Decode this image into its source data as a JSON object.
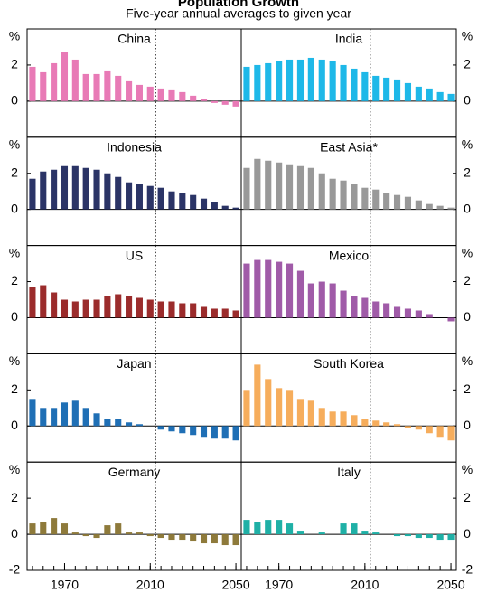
{
  "title": "Population Growth",
  "subtitle": "Five-year annual averages to given year",
  "chart_data": [
    {
      "type": "bar",
      "title": "China",
      "y_label": "%",
      "color": "#e87ab6",
      "x": [
        1955,
        1960,
        1965,
        1970,
        1975,
        1980,
        1985,
        1990,
        1995,
        2000,
        2005,
        2010,
        2015,
        2020,
        2025,
        2030,
        2035,
        2040,
        2045,
        2050
      ],
      "values": [
        1.9,
        1.6,
        2.1,
        2.7,
        2.3,
        1.5,
        1.5,
        1.7,
        1.4,
        1.1,
        0.9,
        0.8,
        0.7,
        0.6,
        0.5,
        0.3,
        0.1,
        -0.1,
        -0.2,
        -0.3
      ],
      "xlim": [
        1952.5,
        2052.5
      ],
      "ylim": [
        -2,
        4
      ],
      "yticks": [
        0,
        2
      ],
      "divider_x": 2012.5
    },
    {
      "type": "bar",
      "title": "India",
      "y_label": "%",
      "color": "#1eb8e8",
      "x": [
        1955,
        1960,
        1965,
        1970,
        1975,
        1980,
        1985,
        1990,
        1995,
        2000,
        2005,
        2010,
        2015,
        2020,
        2025,
        2030,
        2035,
        2040,
        2045,
        2050
      ],
      "values": [
        1.9,
        2.0,
        2.1,
        2.2,
        2.3,
        2.3,
        2.4,
        2.3,
        2.2,
        2.0,
        1.8,
        1.6,
        1.4,
        1.3,
        1.2,
        1.0,
        0.8,
        0.7,
        0.5,
        0.4
      ],
      "xlim": [
        1952.5,
        2052.5
      ],
      "ylim": [
        -2,
        4
      ],
      "yticks": [
        0,
        2
      ],
      "divider_x": 2012.5
    },
    {
      "type": "bar",
      "title": "Indonesia",
      "y_label": "%",
      "color": "#2b3466",
      "x": [
        1955,
        1960,
        1965,
        1970,
        1975,
        1980,
        1985,
        1990,
        1995,
        2000,
        2005,
        2010,
        2015,
        2020,
        2025,
        2030,
        2035,
        2040,
        2045,
        2050
      ],
      "values": [
        1.7,
        2.1,
        2.2,
        2.4,
        2.4,
        2.3,
        2.2,
        2.0,
        1.8,
        1.5,
        1.4,
        1.3,
        1.2,
        1.0,
        0.9,
        0.8,
        0.6,
        0.4,
        0.2,
        0.1
      ],
      "xlim": [
        1952.5,
        2052.5
      ],
      "ylim": [
        -2,
        4
      ],
      "yticks": [
        0,
        2
      ],
      "divider_x": 2012.5
    },
    {
      "type": "bar",
      "title": "East Asia*",
      "y_label": "%",
      "color": "#999999",
      "x": [
        1955,
        1960,
        1965,
        1970,
        1975,
        1980,
        1985,
        1990,
        1995,
        2000,
        2005,
        2010,
        2015,
        2020,
        2025,
        2030,
        2035,
        2040,
        2045,
        2050
      ],
      "values": [
        2.3,
        2.8,
        2.7,
        2.6,
        2.5,
        2.4,
        2.3,
        2.0,
        1.7,
        1.6,
        1.4,
        1.2,
        1.1,
        0.9,
        0.8,
        0.7,
        0.5,
        0.3,
        0.2,
        0.1
      ],
      "xlim": [
        1952.5,
        2052.5
      ],
      "ylim": [
        -2,
        4
      ],
      "yticks": [
        0,
        2
      ],
      "divider_x": 2012.5
    },
    {
      "type": "bar",
      "title": "US",
      "y_label": "%",
      "color": "#9b2c2c",
      "x": [
        1955,
        1960,
        1965,
        1970,
        1975,
        1980,
        1985,
        1990,
        1995,
        2000,
        2005,
        2010,
        2015,
        2020,
        2025,
        2030,
        2035,
        2040,
        2045,
        2050
      ],
      "values": [
        1.7,
        1.8,
        1.4,
        1.0,
        0.9,
        1.0,
        1.0,
        1.2,
        1.3,
        1.2,
        1.1,
        1.0,
        0.9,
        0.9,
        0.8,
        0.8,
        0.6,
        0.5,
        0.5,
        0.4
      ],
      "xlim": [
        1952.5,
        2052.5
      ],
      "ylim": [
        -2,
        4
      ],
      "yticks": [
        0,
        2
      ],
      "divider_x": 2012.5
    },
    {
      "type": "bar",
      "title": "Mexico",
      "y_label": "%",
      "color": "#a05ba8",
      "x": [
        1955,
        1960,
        1965,
        1970,
        1975,
        1980,
        1985,
        1990,
        1995,
        2000,
        2005,
        2010,
        2015,
        2020,
        2025,
        2030,
        2035,
        2040,
        2045,
        2050
      ],
      "values": [
        3.0,
        3.2,
        3.2,
        3.1,
        3.0,
        2.6,
        1.9,
        2.0,
        1.9,
        1.5,
        1.2,
        1.1,
        0.9,
        0.8,
        0.6,
        0.5,
        0.4,
        0.2,
        0.0,
        -0.2
      ],
      "xlim": [
        1952.5,
        2052.5
      ],
      "ylim": [
        -2,
        4
      ],
      "yticks": [
        0,
        2
      ],
      "divider_x": 2012.5
    },
    {
      "type": "bar",
      "title": "Japan",
      "y_label": "%",
      "color": "#1f6fb5",
      "x": [
        1955,
        1960,
        1965,
        1970,
        1975,
        1980,
        1985,
        1990,
        1995,
        2000,
        2005,
        2010,
        2015,
        2020,
        2025,
        2030,
        2035,
        2040,
        2045,
        2050
      ],
      "values": [
        1.5,
        1.0,
        1.0,
        1.3,
        1.4,
        1.0,
        0.7,
        0.4,
        0.4,
        0.2,
        0.1,
        0.0,
        -0.2,
        -0.3,
        -0.4,
        -0.5,
        -0.6,
        -0.7,
        -0.7,
        -0.8
      ],
      "xlim": [
        1952.5,
        2052.5
      ],
      "ylim": [
        -2,
        4
      ],
      "yticks": [
        0,
        2
      ],
      "divider_x": 2012.5
    },
    {
      "type": "bar",
      "title": "South Korea",
      "y_label": "%",
      "color": "#f6ad5c",
      "x": [
        1955,
        1960,
        1965,
        1970,
        1975,
        1980,
        1985,
        1990,
        1995,
        2000,
        2005,
        2010,
        2015,
        2020,
        2025,
        2030,
        2035,
        2040,
        2045,
        2050
      ],
      "values": [
        2.0,
        3.4,
        2.6,
        2.1,
        2.0,
        1.5,
        1.4,
        1.0,
        0.8,
        0.8,
        0.6,
        0.4,
        0.3,
        0.2,
        0.1,
        -0.1,
        -0.2,
        -0.4,
        -0.6,
        -0.8
      ],
      "xlim": [
        1952.5,
        2052.5
      ],
      "ylim": [
        -2,
        4
      ],
      "yticks": [
        0,
        2
      ],
      "divider_x": 2012.5
    },
    {
      "type": "bar",
      "title": "Germany",
      "y_label": "%",
      "color": "#8e7a3b",
      "x": [
        1955,
        1960,
        1965,
        1970,
        1975,
        1980,
        1985,
        1990,
        1995,
        2000,
        2005,
        2010,
        2015,
        2020,
        2025,
        2030,
        2035,
        2040,
        2045,
        2050
      ],
      "values": [
        0.6,
        0.7,
        0.9,
        0.6,
        0.1,
        -0.1,
        -0.2,
        0.5,
        0.6,
        0.1,
        0.1,
        -0.1,
        -0.2,
        -0.3,
        -0.3,
        -0.4,
        -0.5,
        -0.5,
        -0.6,
        -0.6
      ],
      "xlim": [
        1952.5,
        2052.5
      ],
      "ylim": [
        -2,
        4
      ],
      "yticks": [
        -2,
        0,
        2
      ],
      "xticks": [
        1970,
        2010,
        2050
      ],
      "divider_x": 2012.5
    },
    {
      "type": "bar",
      "title": "Italy",
      "y_label": "%",
      "color": "#1fb0a6",
      "x": [
        1955,
        1960,
        1965,
        1970,
        1975,
        1980,
        1985,
        1990,
        1995,
        2000,
        2005,
        2010,
        2015,
        2020,
        2025,
        2030,
        2035,
        2040,
        2045,
        2050
      ],
      "values": [
        0.8,
        0.7,
        0.8,
        0.8,
        0.6,
        0.2,
        0.0,
        0.1,
        0.0,
        0.6,
        0.6,
        0.2,
        0.1,
        0.0,
        -0.1,
        -0.1,
        -0.2,
        -0.2,
        -0.3,
        -0.3
      ],
      "xlim": [
        1952.5,
        2052.5
      ],
      "ylim": [
        -2,
        4
      ],
      "yticks": [
        -2,
        0,
        2
      ],
      "xticks": [
        1970,
        2010,
        2050
      ],
      "divider_x": 2012.5
    }
  ]
}
